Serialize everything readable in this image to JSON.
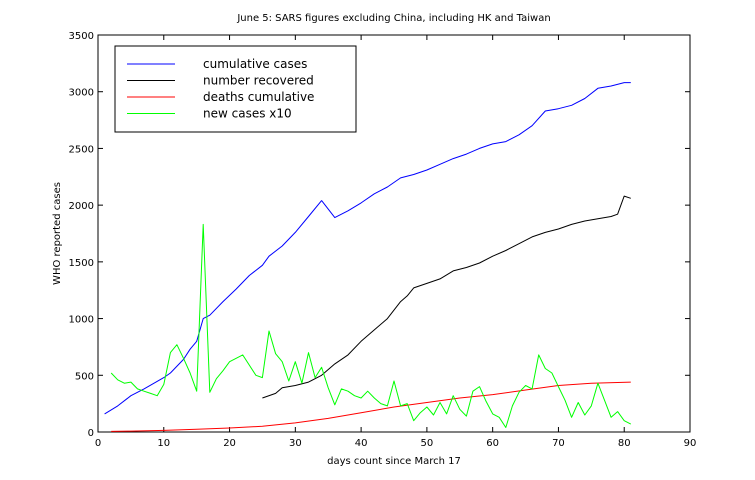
{
  "chart_data": {
    "type": "line",
    "title": "June 5: SARS figures excluding China, including HK and Taiwan",
    "xlabel": "days count since March 17",
    "ylabel": "WHO reported cases",
    "xlim": [
      0,
      90
    ],
    "ylim": [
      0,
      3500
    ],
    "xticks": [
      0,
      10,
      20,
      30,
      40,
      50,
      60,
      70,
      80,
      90
    ],
    "yticks": [
      0,
      500,
      1000,
      1500,
      2000,
      2500,
      3000,
      3500
    ],
    "grid": false,
    "legend_position": "top-left",
    "series": [
      {
        "name": "cumulative cases",
        "color": "#0000ff",
        "points": [
          [
            1,
            160
          ],
          [
            3,
            230
          ],
          [
            5,
            320
          ],
          [
            7,
            380
          ],
          [
            10,
            480
          ],
          [
            11,
            520
          ],
          [
            13,
            640
          ],
          [
            14,
            730
          ],
          [
            15,
            800
          ],
          [
            16,
            1000
          ],
          [
            17,
            1030
          ],
          [
            19,
            1150
          ],
          [
            21,
            1260
          ],
          [
            23,
            1380
          ],
          [
            25,
            1470
          ],
          [
            26,
            1550
          ],
          [
            28,
            1640
          ],
          [
            30,
            1760
          ],
          [
            32,
            1900
          ],
          [
            34,
            2040
          ],
          [
            36,
            1890
          ],
          [
            38,
            1950
          ],
          [
            40,
            2020
          ],
          [
            42,
            2100
          ],
          [
            44,
            2160
          ],
          [
            46,
            2240
          ],
          [
            48,
            2270
          ],
          [
            50,
            2310
          ],
          [
            52,
            2360
          ],
          [
            54,
            2410
          ],
          [
            56,
            2450
          ],
          [
            58,
            2500
          ],
          [
            60,
            2540
          ],
          [
            62,
            2560
          ],
          [
            64,
            2620
          ],
          [
            66,
            2700
          ],
          [
            68,
            2830
          ],
          [
            70,
            2850
          ],
          [
            72,
            2880
          ],
          [
            74,
            2940
          ],
          [
            76,
            3030
          ],
          [
            78,
            3050
          ],
          [
            80,
            3080
          ],
          [
            81,
            3080
          ]
        ]
      },
      {
        "name": "number recovered",
        "color": "#000000",
        "points": [
          [
            25,
            300
          ],
          [
            27,
            340
          ],
          [
            28,
            390
          ],
          [
            30,
            410
          ],
          [
            32,
            440
          ],
          [
            34,
            500
          ],
          [
            36,
            600
          ],
          [
            38,
            680
          ],
          [
            40,
            800
          ],
          [
            42,
            900
          ],
          [
            44,
            1000
          ],
          [
            46,
            1150
          ],
          [
            47,
            1200
          ],
          [
            48,
            1270
          ],
          [
            50,
            1310
          ],
          [
            52,
            1350
          ],
          [
            54,
            1420
          ],
          [
            56,
            1450
          ],
          [
            58,
            1490
          ],
          [
            60,
            1550
          ],
          [
            62,
            1600
          ],
          [
            64,
            1660
          ],
          [
            66,
            1720
          ],
          [
            68,
            1760
          ],
          [
            70,
            1790
          ],
          [
            72,
            1830
          ],
          [
            74,
            1860
          ],
          [
            76,
            1880
          ],
          [
            78,
            1900
          ],
          [
            79,
            1920
          ],
          [
            80,
            2080
          ],
          [
            81,
            2060
          ]
        ]
      },
      {
        "name": "deaths cumulative",
        "color": "#ff0000",
        "points": [
          [
            2,
            5
          ],
          [
            5,
            8
          ],
          [
            10,
            14
          ],
          [
            15,
            25
          ],
          [
            20,
            35
          ],
          [
            25,
            50
          ],
          [
            30,
            80
          ],
          [
            35,
            120
          ],
          [
            40,
            170
          ],
          [
            45,
            220
          ],
          [
            50,
            260
          ],
          [
            55,
            300
          ],
          [
            60,
            330
          ],
          [
            65,
            370
          ],
          [
            70,
            410
          ],
          [
            75,
            430
          ],
          [
            81,
            440
          ]
        ]
      },
      {
        "name": "new cases x10",
        "color": "#00ff00",
        "points": [
          [
            2,
            520
          ],
          [
            3,
            460
          ],
          [
            4,
            430
          ],
          [
            5,
            440
          ],
          [
            6,
            380
          ],
          [
            7,
            360
          ],
          [
            8,
            340
          ],
          [
            9,
            320
          ],
          [
            10,
            420
          ],
          [
            11,
            700
          ],
          [
            12,
            770
          ],
          [
            13,
            650
          ],
          [
            14,
            520
          ],
          [
            15,
            360
          ],
          [
            16,
            1830
          ],
          [
            17,
            350
          ],
          [
            18,
            470
          ],
          [
            19,
            540
          ],
          [
            20,
            620
          ],
          [
            22,
            680
          ],
          [
            24,
            500
          ],
          [
            25,
            480
          ],
          [
            26,
            890
          ],
          [
            27,
            690
          ],
          [
            28,
            620
          ],
          [
            29,
            450
          ],
          [
            30,
            620
          ],
          [
            31,
            430
          ],
          [
            32,
            700
          ],
          [
            33,
            480
          ],
          [
            34,
            570
          ],
          [
            35,
            390
          ],
          [
            36,
            240
          ],
          [
            37,
            380
          ],
          [
            38,
            360
          ],
          [
            39,
            320
          ],
          [
            40,
            300
          ],
          [
            41,
            360
          ],
          [
            42,
            300
          ],
          [
            43,
            250
          ],
          [
            44,
            230
          ],
          [
            45,
            450
          ],
          [
            46,
            230
          ],
          [
            47,
            250
          ],
          [
            48,
            100
          ],
          [
            49,
            170
          ],
          [
            50,
            220
          ],
          [
            51,
            150
          ],
          [
            52,
            260
          ],
          [
            53,
            160
          ],
          [
            54,
            320
          ],
          [
            55,
            200
          ],
          [
            56,
            140
          ],
          [
            57,
            360
          ],
          [
            58,
            400
          ],
          [
            59,
            270
          ],
          [
            60,
            160
          ],
          [
            61,
            130
          ],
          [
            62,
            40
          ],
          [
            63,
            230
          ],
          [
            64,
            350
          ],
          [
            65,
            410
          ],
          [
            66,
            380
          ],
          [
            67,
            680
          ],
          [
            68,
            560
          ],
          [
            69,
            520
          ],
          [
            70,
            400
          ],
          [
            71,
            280
          ],
          [
            72,
            130
          ],
          [
            73,
            260
          ],
          [
            74,
            150
          ],
          [
            75,
            230
          ],
          [
            76,
            430
          ],
          [
            77,
            280
          ],
          [
            78,
            130
          ],
          [
            79,
            180
          ],
          [
            80,
            100
          ],
          [
            81,
            70
          ]
        ]
      }
    ]
  }
}
